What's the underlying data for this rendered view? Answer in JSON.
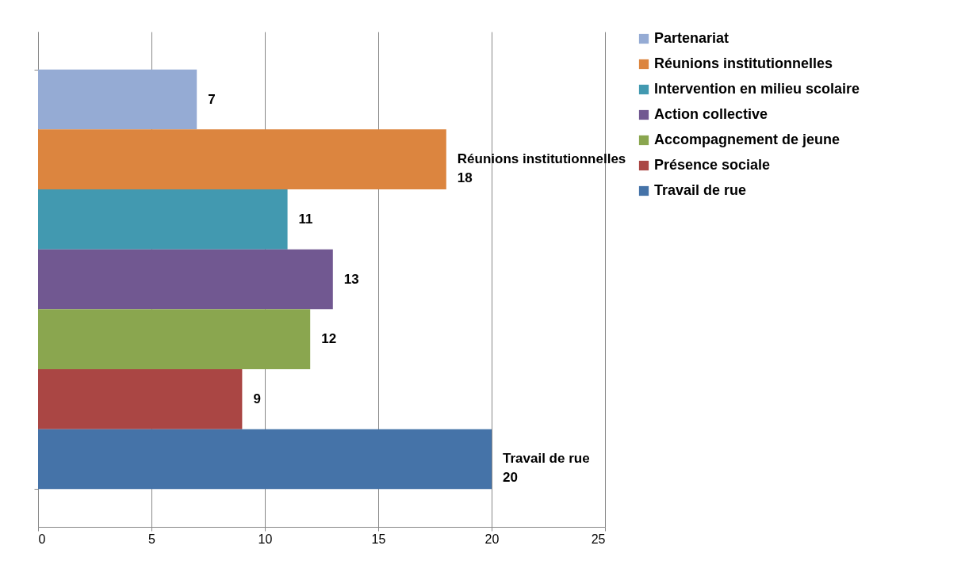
{
  "chart_data": {
    "type": "bar",
    "orientation": "horizontal",
    "categories": [
      null
    ],
    "series": [
      {
        "name": "Partenariat",
        "color": "#95abd4",
        "values": [
          7
        ],
        "value_labels": [
          "7"
        ]
      },
      {
        "name": "Réunions institutionnelles",
        "color": "#dc853f",
        "values": [
          18
        ],
        "value_labels": [
          "Réunions institutionnelles 18"
        ]
      },
      {
        "name": "Intervention en milieu scolaire",
        "color": "#4299b0",
        "values": [
          11
        ],
        "value_labels": [
          "11"
        ]
      },
      {
        "name": "Action collective",
        "color": "#715891",
        "values": [
          13
        ],
        "value_labels": [
          "13"
        ]
      },
      {
        "name": "Accompagnement de jeune",
        "color": "#8aa64f",
        "values": [
          12
        ],
        "value_labels": [
          "12"
        ]
      },
      {
        "name": "Présence sociale",
        "color": "#aa4644",
        "values": [
          9
        ],
        "value_labels": [
          "9"
        ]
      },
      {
        "name": "Travail de rue",
        "color": "#4573a8",
        "values": [
          20
        ],
        "value_labels": [
          "Travail de rue 20"
        ]
      }
    ],
    "xlim": [
      0,
      25
    ],
    "xticks": [
      0,
      5,
      10,
      15,
      20,
      25
    ],
    "grid": "x",
    "legend": "right",
    "tick_labels": "x"
  }
}
